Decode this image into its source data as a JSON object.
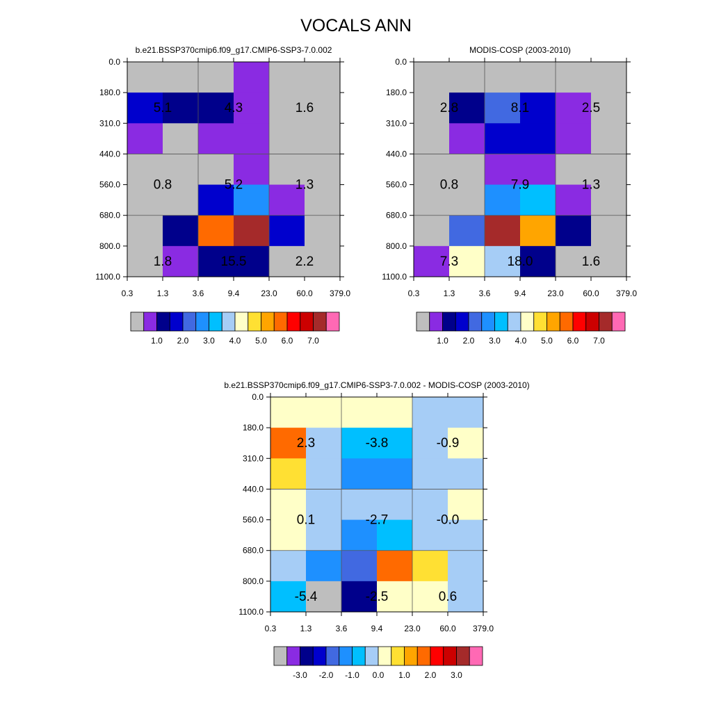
{
  "figure_title": "VOCALS ANN",
  "palette": {
    "grey": "#bebebe",
    "purple": "#8a2be2",
    "navy": "#00008b",
    "blue": "#0000cd",
    "royal": "#4169e1",
    "dodger": "#1e90ff",
    "sky": "#00bfff",
    "light": "#a6cdf6",
    "cream": "#ffffc8",
    "gold": "#ffe033",
    "amber": "#ffa500",
    "orange": "#ff6a00",
    "red": "#ff0000",
    "crimson": "#cc0000",
    "brown": "#a52a2a",
    "pink": "#ff69b4"
  },
  "chart_data": [
    {
      "type": "heatmap",
      "title": "b.e21.BSSP370cmip6.f09_g17.CMIP6-SSP3-7.0.002",
      "x_ticks": [
        "0.3",
        "1.3",
        "3.6",
        "9.4",
        "23.0",
        "60.0",
        "379.0"
      ],
      "y_ticks": [
        "0.0",
        "180.0",
        "310.0",
        "440.0",
        "560.0",
        "680.0",
        "800.0",
        "1100.0"
      ],
      "cells": [
        [
          "grey",
          "grey",
          "grey",
          "purple",
          "grey",
          "grey"
        ],
        [
          "blue",
          "navy",
          "navy",
          "purple",
          "grey",
          "grey"
        ],
        [
          "purple",
          "grey",
          "purple",
          "purple",
          "grey",
          "grey"
        ],
        [
          "grey",
          "grey",
          "grey",
          "purple",
          "grey",
          "grey"
        ],
        [
          "grey",
          "grey",
          "blue",
          "dodger",
          "purple",
          "grey"
        ],
        [
          "grey",
          "navy",
          "orange",
          "brown",
          "blue",
          "grey"
        ],
        [
          "grey",
          "purple",
          "navy",
          "navy",
          "grey",
          "grey"
        ]
      ],
      "annotations": [
        {
          "col": 0,
          "row": 0,
          "text": "5.1"
        },
        {
          "col": 1,
          "row": 0,
          "text": "4.3"
        },
        {
          "col": 2,
          "row": 0,
          "text": "1.6"
        },
        {
          "col": 0,
          "row": 1,
          "text": "0.8"
        },
        {
          "col": 1,
          "row": 1,
          "text": "5.2"
        },
        {
          "col": 2,
          "row": 1,
          "text": "1.3"
        },
        {
          "col": 0,
          "row": 2,
          "text": "1.8"
        },
        {
          "col": 1,
          "row": 2,
          "text": "15.5"
        },
        {
          "col": 2,
          "row": 2,
          "text": "2.2"
        }
      ],
      "colorbar": {
        "colors": [
          "grey",
          "purple",
          "navy",
          "blue",
          "royal",
          "dodger",
          "sky",
          "light",
          "cream",
          "gold",
          "amber",
          "orange",
          "red",
          "crimson",
          "brown",
          "pink"
        ],
        "labels": [
          {
            "boundary": 2,
            "text": "1.0"
          },
          {
            "boundary": 4,
            "text": "2.0"
          },
          {
            "boundary": 6,
            "text": "3.0"
          },
          {
            "boundary": 8,
            "text": "4.0"
          },
          {
            "boundary": 10,
            "text": "5.0"
          },
          {
            "boundary": 12,
            "text": "6.0"
          },
          {
            "boundary": 14,
            "text": "7.0"
          }
        ]
      }
    },
    {
      "type": "heatmap",
      "title": "MODIS-COSP (2003-2010)",
      "x_ticks": [
        "0.3",
        "1.3",
        "3.6",
        "9.4",
        "23.0",
        "60.0",
        "379.0"
      ],
      "y_ticks": [
        "0.0",
        "180.0",
        "310.0",
        "440.0",
        "560.0",
        "680.0",
        "800.0",
        "1100.0"
      ],
      "cells": [
        [
          "grey",
          "grey",
          "grey",
          "grey",
          "grey",
          "grey"
        ],
        [
          "grey",
          "navy",
          "royal",
          "blue",
          "purple",
          "grey"
        ],
        [
          "grey",
          "purple",
          "blue",
          "blue",
          "purple",
          "grey"
        ],
        [
          "grey",
          "grey",
          "purple",
          "purple",
          "grey",
          "grey"
        ],
        [
          "grey",
          "grey",
          "dodger",
          "sky",
          "purple",
          "grey"
        ],
        [
          "grey",
          "royal",
          "brown",
          "amber",
          "navy",
          "grey"
        ],
        [
          "purple",
          "cream",
          "light",
          "navy",
          "grey",
          "grey"
        ]
      ],
      "annotations": [
        {
          "col": 0,
          "row": 0,
          "text": "2.8"
        },
        {
          "col": 1,
          "row": 0,
          "text": "8.1"
        },
        {
          "col": 2,
          "row": 0,
          "text": "2.5"
        },
        {
          "col": 0,
          "row": 1,
          "text": "0.8"
        },
        {
          "col": 1,
          "row": 1,
          "text": "7.9"
        },
        {
          "col": 2,
          "row": 1,
          "text": "1.3"
        },
        {
          "col": 0,
          "row": 2,
          "text": "7.3"
        },
        {
          "col": 1,
          "row": 2,
          "text": "18.0"
        },
        {
          "col": 2,
          "row": 2,
          "text": "1.6"
        }
      ],
      "colorbar": {
        "colors": [
          "grey",
          "purple",
          "navy",
          "blue",
          "royal",
          "dodger",
          "sky",
          "light",
          "cream",
          "gold",
          "amber",
          "orange",
          "red",
          "crimson",
          "brown",
          "pink"
        ],
        "labels": [
          {
            "boundary": 2,
            "text": "1.0"
          },
          {
            "boundary": 4,
            "text": "2.0"
          },
          {
            "boundary": 6,
            "text": "3.0"
          },
          {
            "boundary": 8,
            "text": "4.0"
          },
          {
            "boundary": 10,
            "text": "5.0"
          },
          {
            "boundary": 12,
            "text": "6.0"
          },
          {
            "boundary": 14,
            "text": "7.0"
          }
        ]
      }
    },
    {
      "type": "heatmap",
      "title": "b.e21.BSSP370cmip6.f09_g17.CMIP6-SSP3-7.0.002 - MODIS-COSP (2003-2010)",
      "x_ticks": [
        "0.3",
        "1.3",
        "3.6",
        "9.4",
        "23.0",
        "60.0",
        "379.0"
      ],
      "y_ticks": [
        "0.0",
        "180.0",
        "310.0",
        "440.0",
        "560.0",
        "680.0",
        "800.0",
        "1100.0"
      ],
      "cells": [
        [
          "cream",
          "cream",
          "cream",
          "cream",
          "light",
          "light"
        ],
        [
          "orange",
          "light",
          "sky",
          "sky",
          "light",
          "cream"
        ],
        [
          "gold",
          "light",
          "dodger",
          "dodger",
          "light",
          "light"
        ],
        [
          "cream",
          "light",
          "light",
          "light",
          "light",
          "cream"
        ],
        [
          "cream",
          "light",
          "dodger",
          "sky",
          "light",
          "light"
        ],
        [
          "light",
          "dodger",
          "royal",
          "orange",
          "gold",
          "light"
        ],
        [
          "sky",
          "grey",
          "navy",
          "cream",
          "cream",
          "light"
        ]
      ],
      "annotations": [
        {
          "col": 0,
          "row": 0,
          "text": "2.3"
        },
        {
          "col": 1,
          "row": 0,
          "text": "-3.8"
        },
        {
          "col": 2,
          "row": 0,
          "text": "-0.9"
        },
        {
          "col": 0,
          "row": 1,
          "text": "0.1"
        },
        {
          "col": 1,
          "row": 1,
          "text": "-2.7"
        },
        {
          "col": 2,
          "row": 1,
          "text": "-0.0"
        },
        {
          "col": 0,
          "row": 2,
          "text": "-5.4"
        },
        {
          "col": 1,
          "row": 2,
          "text": "-2.5"
        },
        {
          "col": 2,
          "row": 2,
          "text": "0.6"
        }
      ],
      "colorbar": {
        "colors": [
          "grey",
          "purple",
          "navy",
          "blue",
          "royal",
          "dodger",
          "sky",
          "light",
          "cream",
          "gold",
          "amber",
          "orange",
          "red",
          "crimson",
          "brown",
          "pink"
        ],
        "labels": [
          {
            "boundary": 2,
            "text": "-3.0"
          },
          {
            "boundary": 4,
            "text": "-2.0"
          },
          {
            "boundary": 6,
            "text": "-1.0"
          },
          {
            "boundary": 8,
            "text": "0.0"
          },
          {
            "boundary": 10,
            "text": "1.0"
          },
          {
            "boundary": 12,
            "text": "2.0"
          },
          {
            "boundary": 14,
            "text": "3.0"
          }
        ]
      }
    }
  ]
}
